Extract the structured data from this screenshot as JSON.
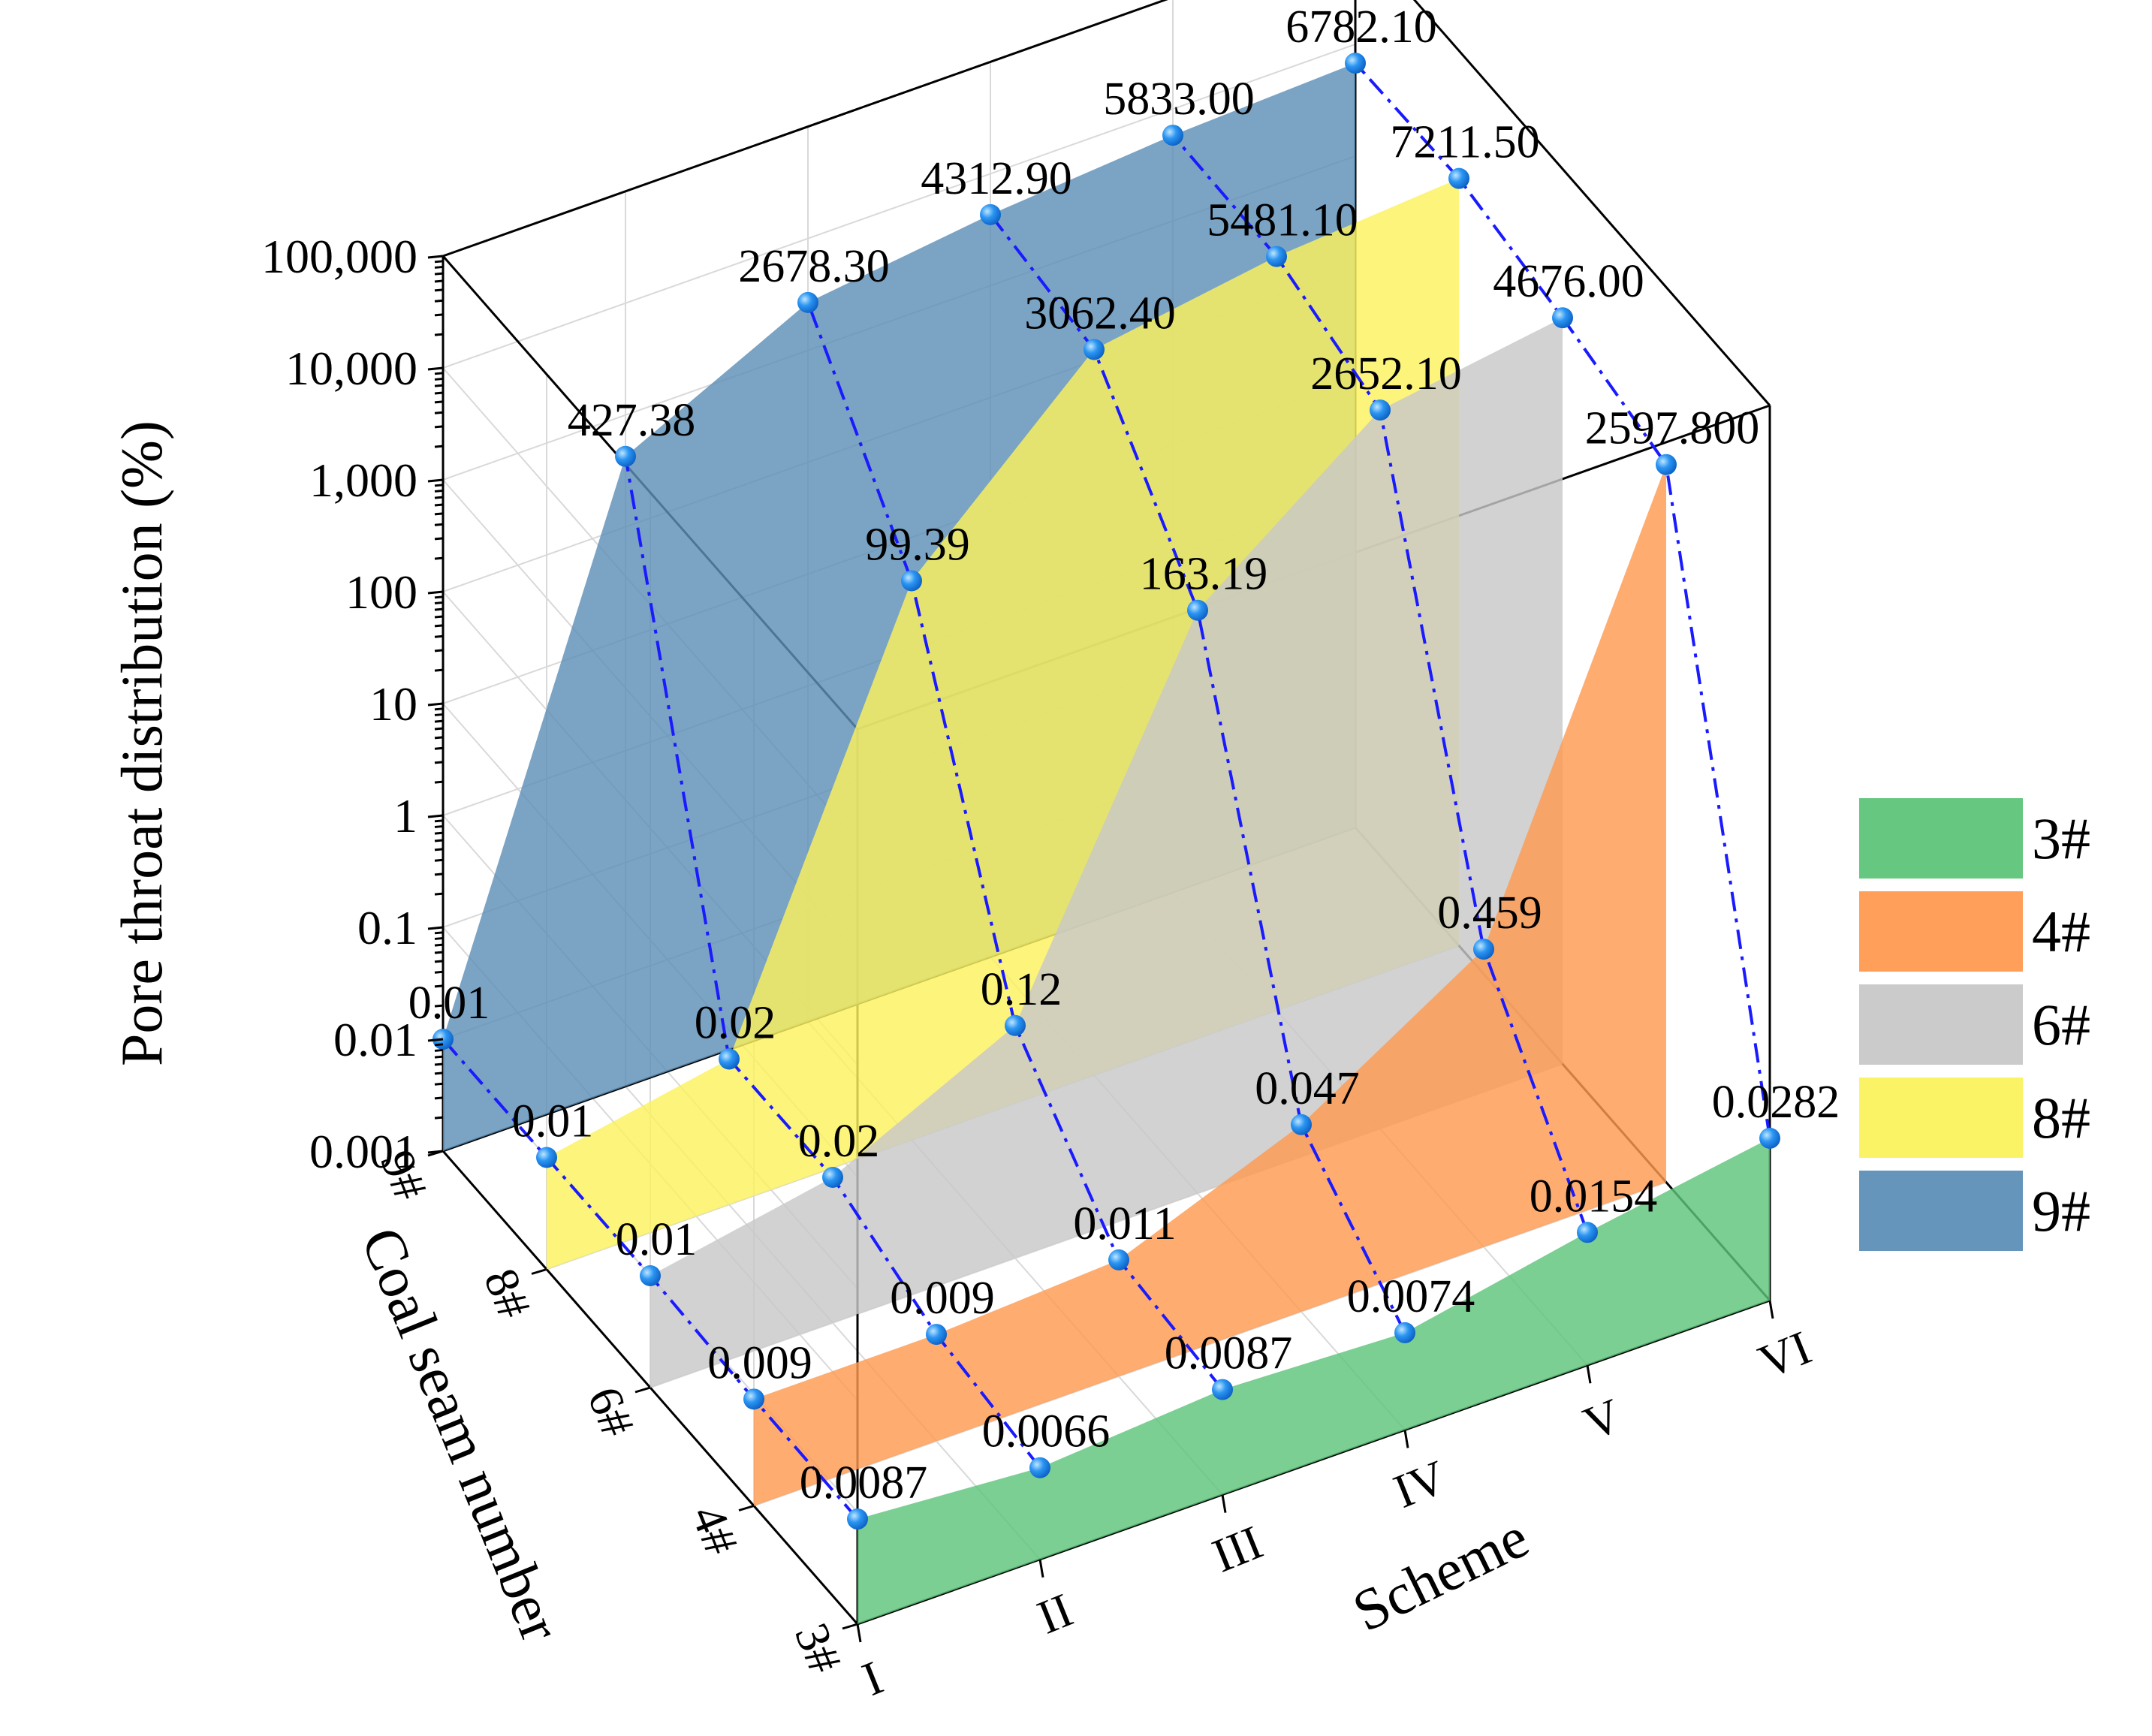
{
  "chart_data": {
    "type": "3d-area",
    "ylabel": "Coal seam number",
    "xlabel": "Scheme",
    "zlabel": "Pore throat distribution (%)",
    "zscale": "log",
    "zlim": [
      0.001,
      100000
    ],
    "zticks": [
      "0.001",
      "0.01",
      "0.1",
      "1",
      "10",
      "100",
      "1,000",
      "10,000",
      "100,000"
    ],
    "categories": [
      "I",
      "II",
      "III",
      "IV",
      "V",
      "VI"
    ],
    "series": [
      {
        "name": "3#",
        "color": "#5ec47a",
        "values": [
          0.0087,
          0.0066,
          0.0087,
          0.0074,
          0.0154,
          0.0282
        ],
        "labels": [
          "0.0087",
          "0.0066",
          "0.0087",
          "0.0074",
          "0.0154",
          "0.0282"
        ]
      },
      {
        "name": "4#",
        "color": "#ff9a50",
        "values": [
          0.009,
          0.009,
          0.011,
          0.047,
          0.459,
          2597.8
        ],
        "labels": [
          "0.009",
          "0.009",
          "0.011",
          "0.047",
          "0.459",
          "2597.800"
        ]
      },
      {
        "name": "6#",
        "color": "#c8c8c8",
        "values": [
          0.01,
          0.02,
          0.12,
          163.19,
          2652.1,
          4676.0
        ],
        "labels": [
          "0.01",
          "0.02",
          "0.12",
          "163.19",
          "2652.10",
          "4676.00"
        ]
      },
      {
        "name": "8#",
        "color": "#fbf25e",
        "values": [
          0.01,
          0.02,
          99.39,
          3062.4,
          5481.1,
          7211.5
        ],
        "labels": [
          "0.01",
          "0.02",
          "99.39",
          "3062.40",
          "5481.10",
          "7211.50"
        ]
      },
      {
        "name": "9#",
        "color": "#5e8fb7",
        "values": [
          0.01,
          427.38,
          2678.3,
          4312.9,
          5833.0,
          6782.1
        ],
        "labels": [
          "0.01",
          "427.38",
          "2678.30",
          "4312.90",
          "5833.00",
          "6782.10"
        ]
      }
    ],
    "legend": {
      "position": "right",
      "items": [
        "3#",
        "4#",
        "6#",
        "8#",
        "9#"
      ]
    },
    "grid": true,
    "connector_color": "#1a1aff",
    "marker_color": "#1e8cf0"
  }
}
